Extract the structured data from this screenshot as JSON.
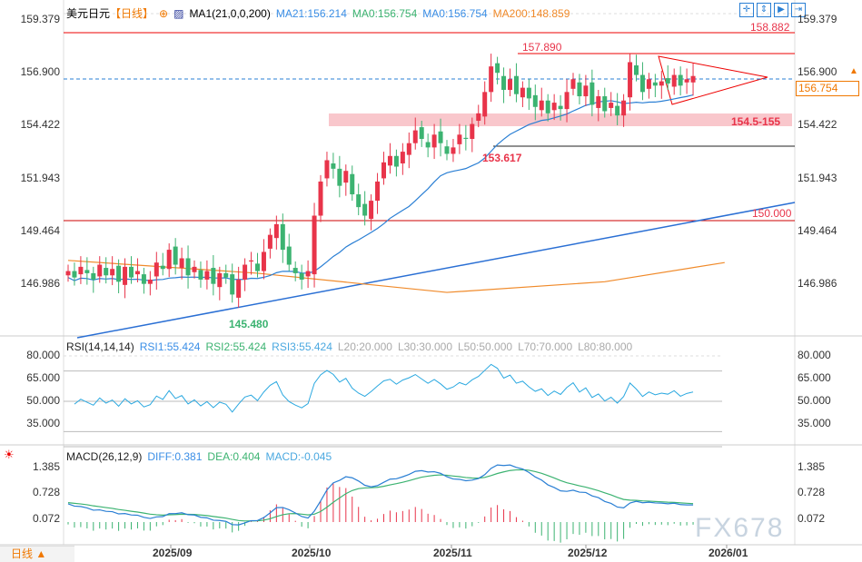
{
  "header": {
    "symbol": "美元日元",
    "period": "【日线】",
    "indicator": "MA1(21,0,0,200)",
    "ma21": "MA21:156.214",
    "ma0a": "MA0:156.754",
    "ma0b": "MA0:156.754",
    "ma200": "MA200:148.859"
  },
  "price_axis": [
    "159.379",
    "156.900",
    "154.422",
    "151.943",
    "149.464",
    "146.986"
  ],
  "current_price": "156.754",
  "annotations": {
    "high": "157.890",
    "low": "153.617",
    "zone": "154.5-155",
    "level150": "150.000",
    "level158": "158.882",
    "min": "145.480"
  },
  "rsi": {
    "title": "RSI(14,14,14)",
    "rsi1": "RSI1:55.424",
    "rsi2": "RSI2:55.424",
    "rsi3": "RSI3:55.424",
    "l20": "L20:20.000",
    "l30": "L30:30.000",
    "l50": "L50:50.000",
    "l70": "L70:70.000",
    "l80": "L80:80.000",
    "axis": [
      "80.000",
      "65.000",
      "50.000",
      "35.000"
    ]
  },
  "macd": {
    "title": "MACD(26,12,9)",
    "diff": "DIFF:0.381",
    "dea": "DEA:0.404",
    "macd": "MACD:-0.045",
    "axis": [
      "1.385",
      "0.728",
      "0.072"
    ]
  },
  "dates": [
    "2025/09",
    "2025/10",
    "2025/11",
    "2025/12",
    "2026/01"
  ],
  "period_button": "日线",
  "watermark": "FX678",
  "colors": {
    "up": "#e8344a",
    "down": "#3cb371",
    "ma21": "#2a7fd4",
    "ma200": "#f08a2a",
    "accent": "#f07800"
  },
  "closes": [
    147.6,
    147.3,
    147.8,
    147.5,
    147.2,
    147.9,
    147.4,
    147.7,
    147.1,
    147.8,
    147.3,
    147.6,
    147.0,
    147.2,
    148.0,
    147.7,
    148.6,
    147.9,
    148.2,
    147.4,
    147.8,
    147.2,
    147.6,
    147.0,
    147.5,
    147.3,
    146.5,
    147.2,
    147.9,
    148.1,
    147.6,
    148.5,
    149.3,
    149.8,
    148.6,
    147.9,
    147.5,
    147.2,
    147.6,
    150.2,
    151.8,
    152.8,
    152.4,
    151.6,
    152.3,
    151.2,
    150.6,
    150.2,
    150.9,
    151.8,
    152.7,
    153.0,
    152.5,
    153.2,
    153.6,
    154.2,
    153.8,
    153.4,
    154.0,
    153.6,
    153.1,
    153.4,
    154.0,
    153.8,
    154.5,
    155.0,
    156.0,
    157.2,
    156.9,
    156.1,
    156.6,
    155.9,
    156.2,
    155.7,
    155.3,
    155.6,
    155.0,
    155.5,
    155.2,
    156.0,
    156.6,
    155.8,
    156.3,
    155.4,
    155.8,
    155.1,
    155.5,
    154.9,
    155.6,
    157.4,
    156.8,
    156.0,
    156.6,
    156.3,
    156.5,
    156.4,
    156.8,
    156.3,
    156.6,
    156.75
  ],
  "ma200_points": [
    [
      0,
      148.1
    ],
    [
      30,
      147.5
    ],
    [
      60,
      146.6
    ],
    [
      85,
      147.1
    ],
    [
      104,
      148.0
    ]
  ]
}
